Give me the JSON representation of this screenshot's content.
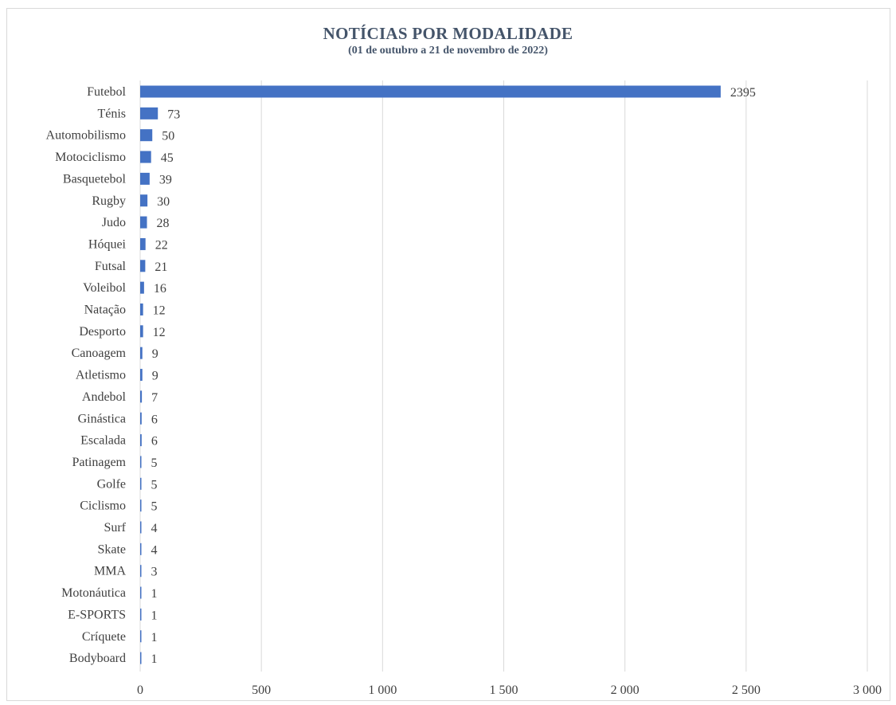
{
  "chart_data": {
    "type": "bar",
    "orientation": "horizontal",
    "title": "NOTÍCIAS POR MODALIDADE",
    "subtitle": "(01 de outubro a 21 de novembro de 2022)",
    "categories": [
      "Futebol",
      "Ténis",
      "Automobilismo",
      "Motociclismo",
      "Basquetebol",
      "Rugby",
      "Judo",
      "Hóquei",
      "Futsal",
      "Voleibol",
      "Natação",
      "Desporto",
      "Canoagem",
      "Atletismo",
      "Andebol",
      "Ginástica",
      "Escalada",
      "Patinagem",
      "Golfe",
      "Ciclismo",
      "Surf",
      "Skate",
      "MMA",
      "Motonáutica",
      "E-SPORTS",
      "Críquete",
      "Bodyboard"
    ],
    "values": [
      2395,
      73,
      50,
      45,
      39,
      30,
      28,
      22,
      21,
      16,
      12,
      12,
      9,
      9,
      7,
      6,
      6,
      5,
      5,
      5,
      4,
      4,
      3,
      1,
      1,
      1,
      1
    ],
    "xlim": [
      0,
      3000
    ],
    "xticks": [
      0,
      500,
      1000,
      1500,
      2000,
      2500,
      3000
    ],
    "xtick_labels": [
      "0",
      "500",
      "1 000",
      "1 500",
      "2 000",
      "2 500",
      "3 000"
    ],
    "grid": "vertical",
    "legend": "none",
    "bar_color": "#4472c4",
    "title_color": "#44546a",
    "text_color": "#404040"
  }
}
